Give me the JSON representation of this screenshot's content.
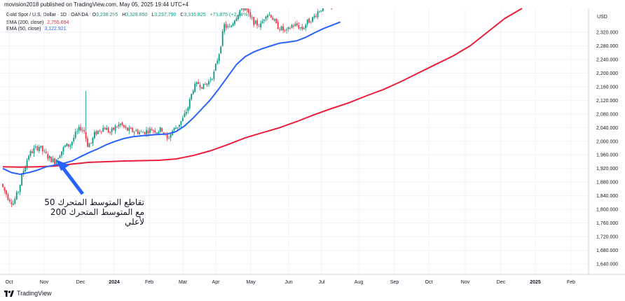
{
  "header": {
    "publisher_line": "movision2018 published on TradingView.com, May 05, 2025 19:44 UTC+4"
  },
  "legend": {
    "symbol": "Gold Spot / U.S. Dollar · 1D · OANDA",
    "o_label": "O",
    "o_value": "3,238.295",
    "h_label": "H",
    "h_value": "3,328.850",
    "l_label": "L",
    "l_value": "3,237.790",
    "c_label": "C",
    "c_value": "3,316.825",
    "change": "+75.875 (+2.34%)",
    "sma_label": "SMA (200, close)",
    "sma_value": "2,755.694",
    "ema_label": "EMA (50, close)",
    "ema_value": "3,122.921"
  },
  "annotation": {
    "line1": "تقاطع المتوسط المتحرك 50",
    "line2": "مع المتوسط المتحرك 200 لأعلي"
  },
  "footer": {
    "brand": "TradingView"
  },
  "colors": {
    "up": "#089981",
    "down": "#f23645",
    "sma": "#e91e3b",
    "ema": "#2962ff",
    "arrow": "#2962ff"
  },
  "chart_data": {
    "type": "candlestick",
    "currency_label": "USD",
    "y_axis": {
      "min": 1620,
      "max": 2380,
      "ticks": [
        "2,320.000",
        "2,280.000",
        "2,240.000",
        "2,200.000",
        "2,160.000",
        "2,120.000",
        "2,080.000",
        "2,040.000",
        "2,000.000",
        "1,960.000",
        "1,920.000",
        "1,880.000",
        "1,840.000",
        "1,800.000",
        "1,760.000",
        "1,720.000",
        "1,680.000",
        "1,640.000"
      ]
    },
    "x_axis": {
      "ticks": [
        "Oct",
        "Nov",
        "Dec",
        "2024",
        "Feb",
        "Mar",
        "Apr",
        "May",
        "Jun",
        "Jul",
        "Aug",
        "Sep",
        "Oct",
        "Nov",
        "Dec",
        "2025",
        "Feb"
      ]
    },
    "price_path": [
      [
        0,
        1875
      ],
      [
        4,
        1835
      ],
      [
        7,
        1818
      ],
      [
        10,
        1855
      ],
      [
        13,
        1915
      ],
      [
        16,
        1960
      ],
      [
        19,
        1975
      ],
      [
        22,
        1985
      ],
      [
        25,
        1965
      ],
      [
        28,
        1950
      ],
      [
        31,
        1940
      ],
      [
        34,
        1965
      ],
      [
        37,
        1985
      ],
      [
        40,
        1990
      ],
      [
        43,
        2020
      ],
      [
        46,
        2040
      ],
      [
        48,
        2030
      ],
      [
        50,
        1990
      ],
      [
        52,
        1995
      ],
      [
        54,
        2020
      ],
      [
        57,
        2035
      ],
      [
        60,
        2040
      ],
      [
        63,
        2025
      ],
      [
        66,
        2040
      ],
      [
        69,
        2050
      ],
      [
        72,
        2035
      ],
      [
        75,
        2030
      ],
      [
        78,
        2030
      ],
      [
        81,
        2025
      ],
      [
        84,
        2030
      ],
      [
        87,
        2035
      ],
      [
        90,
        2030
      ],
      [
        93,
        2035
      ],
      [
        96,
        2005
      ],
      [
        99,
        2030
      ],
      [
        102,
        2045
      ],
      [
        105,
        2065
      ],
      [
        108,
        2100
      ],
      [
        111,
        2155
      ],
      [
        114,
        2170
      ],
      [
        117,
        2160
      ],
      [
        120,
        2175
      ],
      [
        123,
        2200
      ],
      [
        126,
        2260
      ],
      [
        129,
        2340
      ],
      [
        132,
        2330
      ],
      [
        135,
        2360
      ],
      [
        138,
        2385
      ],
      [
        141,
        2395
      ],
      [
        144,
        2360
      ],
      [
        147,
        2345
      ],
      [
        150,
        2340
      ],
      [
        153,
        2375
      ],
      [
        156,
        2370
      ],
      [
        159,
        2340
      ],
      [
        162,
        2330
      ],
      [
        165,
        2320
      ],
      [
        168,
        2340
      ],
      [
        171,
        2340
      ],
      [
        174,
        2330
      ],
      [
        177,
        2350
      ],
      [
        180,
        2360
      ],
      [
        183,
        2380
      ],
      [
        186,
        2395
      ],
      [
        189,
        2400
      ],
      [
        192,
        2400
      ]
    ],
    "sma200": [
      [
        0,
        1925
      ],
      [
        10,
        1924
      ],
      [
        20,
        1925
      ],
      [
        30,
        1927
      ],
      [
        40,
        1933
      ],
      [
        50,
        1938
      ],
      [
        60,
        1940
      ],
      [
        70,
        1942
      ],
      [
        80,
        1943
      ],
      [
        90,
        1944
      ],
      [
        100,
        1948
      ],
      [
        110,
        1958
      ],
      [
        120,
        1972
      ],
      [
        130,
        1990
      ],
      [
        140,
        2010
      ],
      [
        150,
        2025
      ],
      [
        160,
        2040
      ],
      [
        170,
        2058
      ],
      [
        180,
        2078
      ],
      [
        190,
        2096
      ],
      [
        200,
        2113
      ],
      [
        210,
        2133
      ],
      [
        220,
        2152
      ],
      [
        230,
        2175
      ],
      [
        240,
        2200
      ],
      [
        250,
        2225
      ],
      [
        260,
        2250
      ],
      [
        270,
        2280
      ],
      [
        280,
        2320
      ],
      [
        290,
        2360
      ],
      [
        300,
        2400
      ]
    ],
    "ema50": [
      [
        0,
        1920
      ],
      [
        5,
        1908
      ],
      [
        10,
        1903
      ],
      [
        15,
        1908
      ],
      [
        20,
        1915
      ],
      [
        25,
        1925
      ],
      [
        30,
        1930
      ],
      [
        35,
        1935
      ],
      [
        40,
        1942
      ],
      [
        45,
        1955
      ],
      [
        50,
        1967
      ],
      [
        55,
        1978
      ],
      [
        60,
        1990
      ],
      [
        65,
        2000
      ],
      [
        70,
        2008
      ],
      [
        75,
        2013
      ],
      [
        80,
        2016
      ],
      [
        85,
        2018
      ],
      [
        90,
        2020
      ],
      [
        95,
        2021
      ],
      [
        100,
        2028
      ],
      [
        105,
        2045
      ],
      [
        110,
        2068
      ],
      [
        115,
        2095
      ],
      [
        120,
        2122
      ],
      [
        125,
        2155
      ],
      [
        130,
        2190
      ],
      [
        135,
        2225
      ],
      [
        140,
        2248
      ],
      [
        145,
        2262
      ],
      [
        150,
        2272
      ],
      [
        155,
        2280
      ],
      [
        160,
        2288
      ],
      [
        165,
        2291
      ],
      [
        170,
        2295
      ],
      [
        175,
        2305
      ],
      [
        180,
        2318
      ],
      [
        185,
        2330
      ],
      [
        190,
        2340
      ],
      [
        195,
        2350
      ]
    ]
  }
}
